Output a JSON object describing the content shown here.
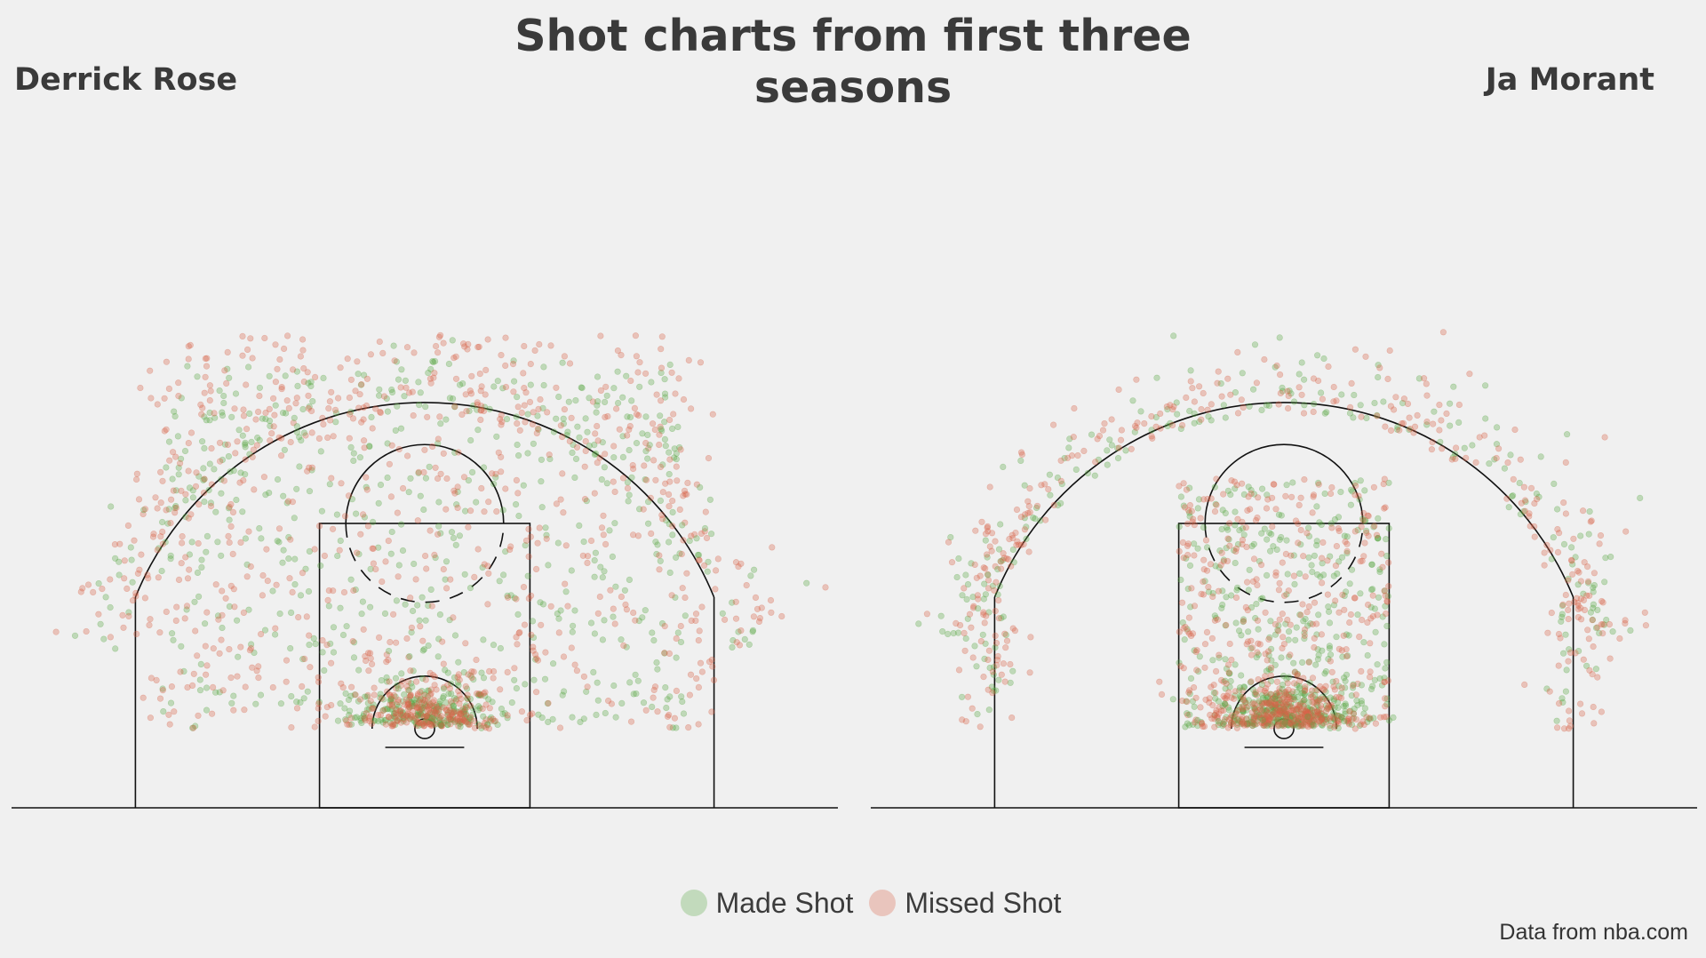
{
  "title": "Shot charts from first three seasons",
  "players": [
    "Derrick Rose",
    "Ja Morant"
  ],
  "legend": [
    {
      "label": "Made Shot",
      "color": "#5aa845"
    },
    {
      "label": "Missed Shot",
      "color": "#d9634a"
    }
  ],
  "source": "Data from nba.com",
  "chart_data": {
    "type": "scatter",
    "title": "Shot charts from first three seasons",
    "panels": [
      {
        "name": "Derrick Rose",
        "clusters": [
          {
            "result": "made",
            "x": [
              0,
              40
            ],
            "y": [
              0,
              30
            ],
            "count": 220
          },
          {
            "result": "missed",
            "x": [
              0,
              40
            ],
            "y": [
              0,
              30
            ],
            "count": 200
          },
          {
            "result": "made",
            "x": [
              -200,
              200
            ],
            "y": [
              0,
              280
            ],
            "count": 520
          },
          {
            "result": "missed",
            "x": [
              -220,
              220
            ],
            "y": [
              0,
              300
            ],
            "count": 620
          },
          {
            "result": "made",
            "x": [
              -260,
              260
            ],
            "y": [
              120,
              300
            ],
            "count": 120
          },
          {
            "result": "missed",
            "x": [
              -260,
              260
            ],
            "y": [
              150,
              330
            ],
            "count": 180
          }
        ]
      },
      {
        "name": "Ja Morant",
        "clusters": [
          {
            "result": "made",
            "x": [
              0,
              40
            ],
            "y": [
              0,
              30
            ],
            "count": 320
          },
          {
            "result": "missed",
            "x": [
              0,
              40
            ],
            "y": [
              0,
              30
            ],
            "count": 280
          },
          {
            "result": "made",
            "x": [
              -80,
              80
            ],
            "y": [
              0,
              190
            ],
            "count": 300
          },
          {
            "result": "missed",
            "x": [
              -80,
              80
            ],
            "y": [
              0,
              190
            ],
            "count": 320
          },
          {
            "result": "made",
            "x": [
              -250,
              250
            ],
            "y": [
              200,
              320
            ],
            "count": 170
          },
          {
            "result": "missed",
            "x": [
              -250,
              250
            ],
            "y": [
              200,
              320
            ],
            "count": 230
          },
          {
            "result": "made",
            "x": [
              -240,
              240
            ],
            "y": [
              0,
              150
            ],
            "count": 60
          },
          {
            "result": "missed",
            "x": [
              -240,
              240
            ],
            "y": [
              0,
              150
            ],
            "count": 110
          }
        ]
      }
    ],
    "xlim": [
      -250,
      250
    ],
    "ylim": [
      -47.5,
      420
    ],
    "grid": false,
    "legend": "bottom-center"
  }
}
